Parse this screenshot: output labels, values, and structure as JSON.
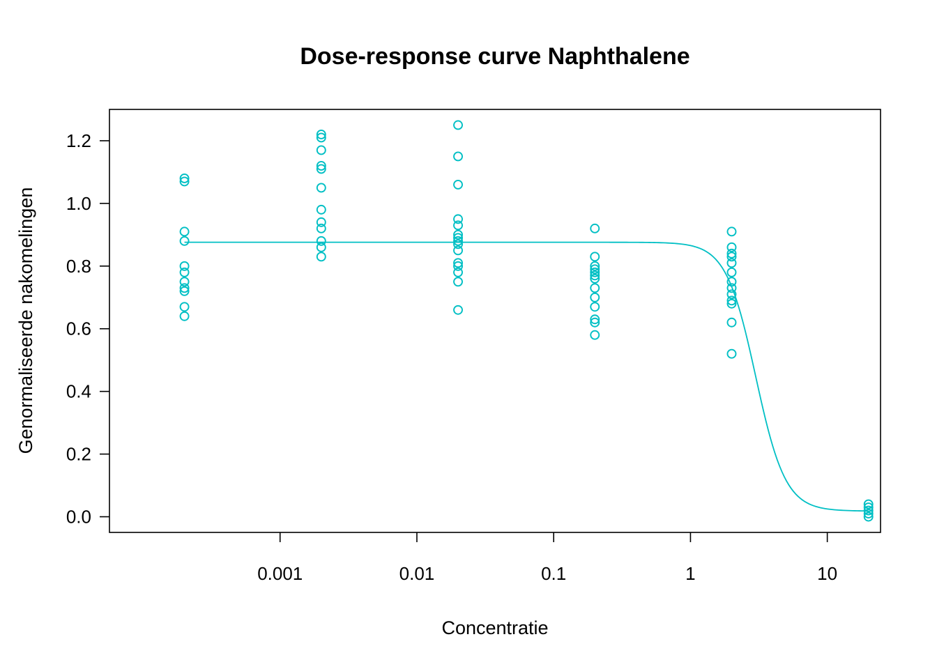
{
  "chart_data": {
    "type": "scatter",
    "title": "Dose-response curve Naphthalene",
    "xlabel": "Concentratie",
    "ylabel": "Genormaliseerde nakomelingen",
    "x_scale": "log",
    "xlim": [
      5.66e-05,
      24.5
    ],
    "ylim": [
      -0.05,
      1.3
    ],
    "x_ticks": [
      0.001,
      0.01,
      0.1,
      1,
      10
    ],
    "x_tick_labels": [
      "0.001",
      "0.01",
      "0.1",
      "1",
      "10"
    ],
    "y_ticks": [
      0,
      0.2,
      0.4,
      0.6,
      0.8,
      1.0,
      1.2
    ],
    "y_tick_labels": [
      "0.0",
      "0.2",
      "0.4",
      "0.6",
      "0.8",
      "1.0",
      "1.2"
    ],
    "color": "#00BFC4",
    "grid": false,
    "series": [
      {
        "marker": "open-circle",
        "points": [
          {
            "x": 0.0002,
            "y": 1.08
          },
          {
            "x": 0.0002,
            "y": 1.07
          },
          {
            "x": 0.0002,
            "y": 0.91
          },
          {
            "x": 0.0002,
            "y": 0.88
          },
          {
            "x": 0.0002,
            "y": 0.8
          },
          {
            "x": 0.0002,
            "y": 0.78
          },
          {
            "x": 0.0002,
            "y": 0.75
          },
          {
            "x": 0.0002,
            "y": 0.73
          },
          {
            "x": 0.0002,
            "y": 0.72
          },
          {
            "x": 0.0002,
            "y": 0.67
          },
          {
            "x": 0.0002,
            "y": 0.64
          },
          {
            "x": 0.002,
            "y": 1.22
          },
          {
            "x": 0.002,
            "y": 1.21
          },
          {
            "x": 0.002,
            "y": 1.17
          },
          {
            "x": 0.002,
            "y": 1.12
          },
          {
            "x": 0.002,
            "y": 1.11
          },
          {
            "x": 0.002,
            "y": 1.05
          },
          {
            "x": 0.002,
            "y": 0.98
          },
          {
            "x": 0.002,
            "y": 0.94
          },
          {
            "x": 0.002,
            "y": 0.92
          },
          {
            "x": 0.002,
            "y": 0.88
          },
          {
            "x": 0.002,
            "y": 0.86
          },
          {
            "x": 0.002,
            "y": 0.83
          },
          {
            "x": 0.02,
            "y": 1.25
          },
          {
            "x": 0.02,
            "y": 1.15
          },
          {
            "x": 0.02,
            "y": 1.06
          },
          {
            "x": 0.02,
            "y": 0.95
          },
          {
            "x": 0.02,
            "y": 0.93
          },
          {
            "x": 0.02,
            "y": 0.9
          },
          {
            "x": 0.02,
            "y": 0.89
          },
          {
            "x": 0.02,
            "y": 0.88
          },
          {
            "x": 0.02,
            "y": 0.87
          },
          {
            "x": 0.02,
            "y": 0.85
          },
          {
            "x": 0.02,
            "y": 0.81
          },
          {
            "x": 0.02,
            "y": 0.8
          },
          {
            "x": 0.02,
            "y": 0.78
          },
          {
            "x": 0.02,
            "y": 0.75
          },
          {
            "x": 0.02,
            "y": 0.66
          },
          {
            "x": 0.2,
            "y": 0.92
          },
          {
            "x": 0.2,
            "y": 0.83
          },
          {
            "x": 0.2,
            "y": 0.8
          },
          {
            "x": 0.2,
            "y": 0.79
          },
          {
            "x": 0.2,
            "y": 0.78
          },
          {
            "x": 0.2,
            "y": 0.77
          },
          {
            "x": 0.2,
            "y": 0.76
          },
          {
            "x": 0.2,
            "y": 0.73
          },
          {
            "x": 0.2,
            "y": 0.7
          },
          {
            "x": 0.2,
            "y": 0.67
          },
          {
            "x": 0.2,
            "y": 0.63
          },
          {
            "x": 0.2,
            "y": 0.62
          },
          {
            "x": 0.2,
            "y": 0.58
          },
          {
            "x": 2,
            "y": 0.91
          },
          {
            "x": 2,
            "y": 0.86
          },
          {
            "x": 2,
            "y": 0.84
          },
          {
            "x": 2,
            "y": 0.83
          },
          {
            "x": 2,
            "y": 0.81
          },
          {
            "x": 2,
            "y": 0.78
          },
          {
            "x": 2,
            "y": 0.75
          },
          {
            "x": 2,
            "y": 0.73
          },
          {
            "x": 2,
            "y": 0.71
          },
          {
            "x": 2,
            "y": 0.69
          },
          {
            "x": 2,
            "y": 0.68
          },
          {
            "x": 2,
            "y": 0.62
          },
          {
            "x": 2,
            "y": 0.52
          },
          {
            "x": 20,
            "y": 0.04
          },
          {
            "x": 20,
            "y": 0.03
          },
          {
            "x": 20,
            "y": 0.02
          },
          {
            "x": 20,
            "y": 0.01
          },
          {
            "x": 20,
            "y": 0.0
          }
        ]
      },
      {
        "marker": "line",
        "model": "log-logistic",
        "params": {
          "bottom": 0.018,
          "top": 0.876,
          "ec50": 3.0,
          "slope": 4.0
        },
        "x_range": [
          0.0002,
          20
        ]
      }
    ]
  }
}
